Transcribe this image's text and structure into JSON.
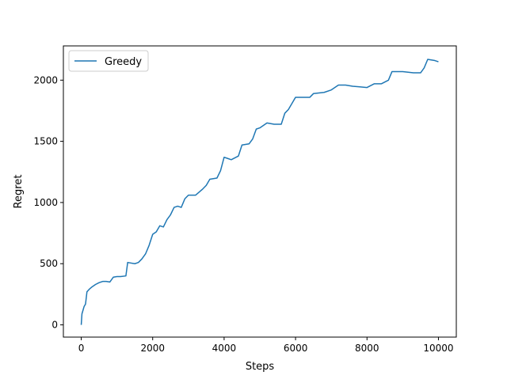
{
  "chart_data": {
    "type": "line",
    "title": "",
    "xlabel": "Steps",
    "ylabel": "Regret",
    "xlim": [
      -500,
      10500
    ],
    "ylim": [
      -100,
      2280
    ],
    "xticks": [
      0,
      2000,
      4000,
      6000,
      8000,
      10000
    ],
    "yticks": [
      0,
      500,
      1000,
      1500,
      2000
    ],
    "grid": false,
    "legend": "top-left",
    "series": [
      {
        "name": "Greedy",
        "color": "#1f77b4",
        "x": [
          0,
          20,
          50,
          80,
          120,
          160,
          220,
          300,
          400,
          500,
          600,
          700,
          800,
          900,
          1000,
          1100,
          1250,
          1300,
          1500,
          1600,
          1700,
          1800,
          1900,
          2000,
          2100,
          2200,
          2300,
          2400,
          2500,
          2600,
          2700,
          2800,
          2900,
          3000,
          3200,
          3400,
          3500,
          3600,
          3800,
          3900,
          4000,
          4100,
          4200,
          4400,
          4500,
          4700,
          4800,
          4900,
          5000,
          5200,
          5400,
          5600,
          5700,
          5800,
          6000,
          6200,
          6400,
          6500,
          6800,
          7000,
          7200,
          7400,
          7600,
          7800,
          8000,
          8200,
          8400,
          8600,
          8700,
          9000,
          9300,
          9500,
          9600,
          9700,
          9900,
          10000
        ],
        "y": [
          0,
          90,
          120,
          150,
          170,
          270,
          290,
          310,
          330,
          345,
          355,
          355,
          350,
          390,
          395,
          395,
          400,
          510,
          500,
          510,
          540,
          580,
          650,
          740,
          760,
          810,
          800,
          860,
          900,
          960,
          970,
          960,
          1030,
          1060,
          1060,
          1110,
          1140,
          1190,
          1200,
          1260,
          1370,
          1360,
          1350,
          1380,
          1470,
          1480,
          1520,
          1600,
          1610,
          1650,
          1640,
          1640,
          1730,
          1760,
          1860,
          1860,
          1860,
          1890,
          1900,
          1920,
          1960,
          1960,
          1950,
          1945,
          1940,
          1970,
          1970,
          2000,
          2070,
          2070,
          2060,
          2060,
          2100,
          2170,
          2160,
          2150
        ]
      }
    ]
  }
}
